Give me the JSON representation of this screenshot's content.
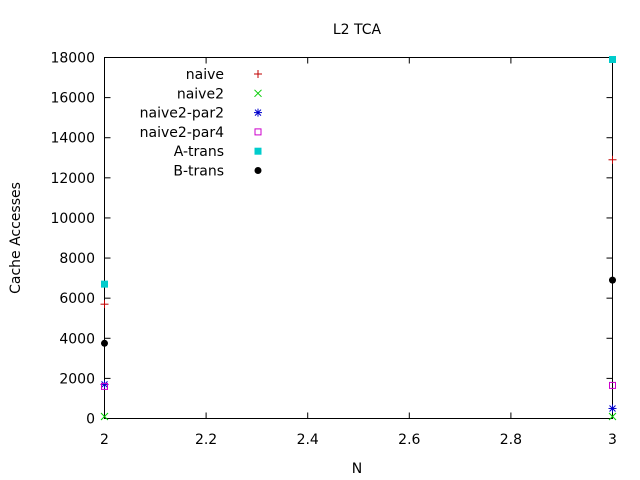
{
  "chart_data": {
    "type": "scatter",
    "title": "L2 TCA",
    "xlabel": "N",
    "ylabel": "Cache Accesses",
    "xlim": [
      2,
      3
    ],
    "ylim": [
      0,
      18000
    ],
    "x_ticks": [
      2,
      2.2,
      2.4,
      2.6,
      2.8,
      3
    ],
    "x_tick_labels": [
      "2",
      "2.2",
      "2.4",
      "2.6",
      "2.8",
      "3"
    ],
    "y_ticks": [
      0,
      2000,
      4000,
      6000,
      8000,
      10000,
      12000,
      14000,
      16000,
      18000
    ],
    "y_tick_labels": [
      "0",
      "2000",
      "4000",
      "6000",
      "8000",
      "10000",
      "12000",
      "14000",
      "16000",
      "18000"
    ],
    "grid": false,
    "legend_position": "top-left",
    "series": [
      {
        "name": "naive",
        "marker": "plus",
        "color": "#c00000",
        "points": [
          [
            2,
            5700
          ],
          [
            3,
            12900
          ]
        ]
      },
      {
        "name": "naive2",
        "marker": "cross",
        "color": "#00cc00",
        "points": [
          [
            2,
            100
          ],
          [
            3,
            100
          ]
        ]
      },
      {
        "name": "naive2-par2",
        "marker": "star",
        "color": "#0000cc",
        "points": [
          [
            2,
            1700
          ],
          [
            3,
            500
          ]
        ]
      },
      {
        "name": "naive2-par4",
        "marker": "open-square",
        "color": "#cc00cc",
        "points": [
          [
            2,
            1600
          ],
          [
            3,
            1650
          ]
        ]
      },
      {
        "name": "A-trans",
        "marker": "filled-square",
        "color": "#00cccc",
        "points": [
          [
            2,
            6700
          ],
          [
            3,
            17900
          ]
        ]
      },
      {
        "name": "B-trans",
        "marker": "filled-circle",
        "color": "#000000",
        "points": [
          [
            2,
            3750
          ],
          [
            3,
            6900
          ]
        ]
      }
    ]
  }
}
